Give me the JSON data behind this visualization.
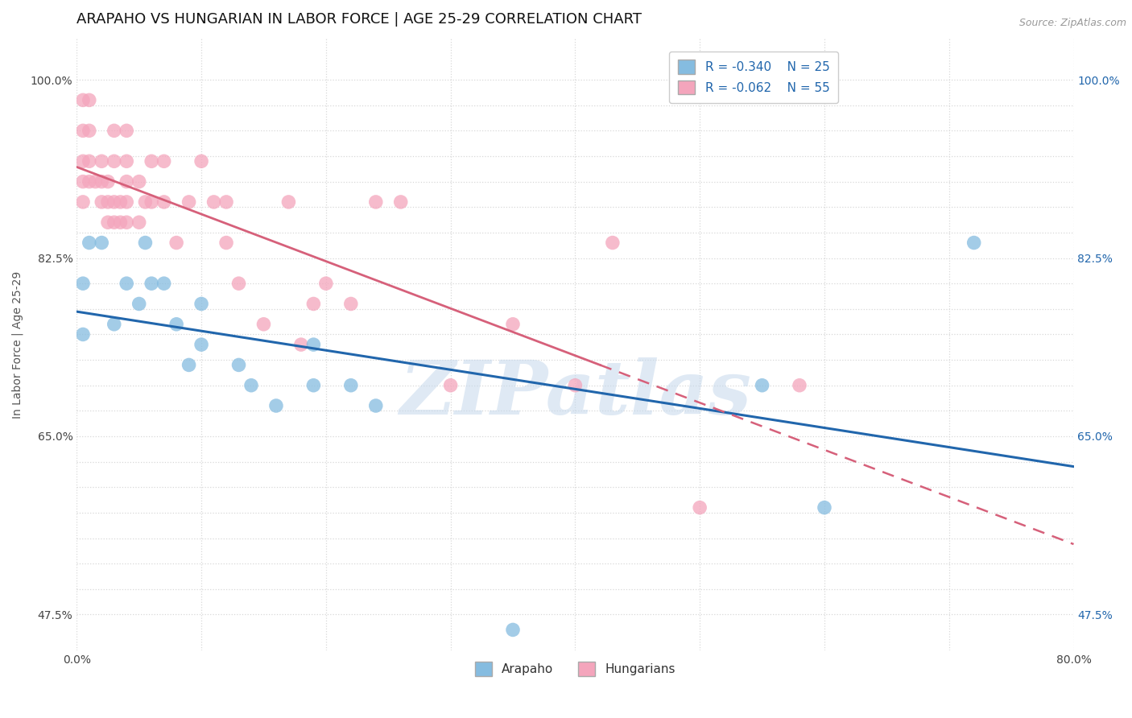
{
  "title": "ARAPAHO VS HUNGARIAN IN LABOR FORCE | AGE 25-29 CORRELATION CHART",
  "source_text": "Source: ZipAtlas.com",
  "xlabel": "",
  "ylabel": "In Labor Force | Age 25-29",
  "xlim": [
    0.0,
    0.8
  ],
  "ylim": [
    0.44,
    1.04
  ],
  "xticks": [
    0.0,
    0.1,
    0.2,
    0.3,
    0.4,
    0.5,
    0.6,
    0.7,
    0.8
  ],
  "xticklabels": [
    "0.0%",
    "",
    "",
    "",
    "",
    "",
    "",
    "",
    "80.0%"
  ],
  "ytick_labeled": [
    0.475,
    0.65,
    0.825,
    1.0
  ],
  "yticklabels_map": {
    "0.475": "47.5%",
    "0.65": "65.0%",
    "0.825": "82.5%",
    "1.0": "100.0%"
  },
  "arapaho_color": "#85bce0",
  "hungarian_color": "#f4a5bc",
  "arapaho_line_color": "#2166ac",
  "hungarian_line_color": "#d6607a",
  "legend_R_arapaho": "R = -0.340",
  "legend_N_arapaho": "N = 25",
  "legend_R_hungarian": "R = -0.062",
  "legend_N_hungarian": "N = 55",
  "legend_label_arapaho": "Arapaho",
  "legend_label_hungarian": "Hungarians",
  "arapaho_x": [
    0.005,
    0.005,
    0.01,
    0.02,
    0.03,
    0.04,
    0.05,
    0.055,
    0.06,
    0.07,
    0.08,
    0.09,
    0.1,
    0.1,
    0.13,
    0.14,
    0.16,
    0.19,
    0.19,
    0.22,
    0.24,
    0.35,
    0.55,
    0.6,
    0.72
  ],
  "arapaho_y": [
    0.75,
    0.8,
    0.84,
    0.84,
    0.76,
    0.8,
    0.78,
    0.84,
    0.8,
    0.8,
    0.76,
    0.72,
    0.78,
    0.74,
    0.72,
    0.7,
    0.68,
    0.74,
    0.7,
    0.7,
    0.68,
    0.46,
    0.7,
    0.58,
    0.84
  ],
  "hungarian_x": [
    0.005,
    0.005,
    0.005,
    0.005,
    0.005,
    0.01,
    0.01,
    0.01,
    0.01,
    0.015,
    0.02,
    0.02,
    0.02,
    0.025,
    0.025,
    0.025,
    0.03,
    0.03,
    0.03,
    0.03,
    0.035,
    0.035,
    0.04,
    0.04,
    0.04,
    0.04,
    0.04,
    0.05,
    0.05,
    0.055,
    0.06,
    0.06,
    0.07,
    0.07,
    0.08,
    0.09,
    0.1,
    0.11,
    0.12,
    0.12,
    0.13,
    0.15,
    0.17,
    0.18,
    0.19,
    0.2,
    0.22,
    0.24,
    0.26,
    0.3,
    0.35,
    0.4,
    0.43,
    0.5,
    0.58
  ],
  "hungarian_y": [
    0.88,
    0.9,
    0.92,
    0.95,
    0.98,
    0.9,
    0.92,
    0.95,
    0.98,
    0.9,
    0.88,
    0.9,
    0.92,
    0.86,
    0.88,
    0.9,
    0.86,
    0.88,
    0.92,
    0.95,
    0.86,
    0.88,
    0.86,
    0.88,
    0.9,
    0.92,
    0.95,
    0.86,
    0.9,
    0.88,
    0.88,
    0.92,
    0.88,
    0.92,
    0.84,
    0.88,
    0.92,
    0.88,
    0.84,
    0.88,
    0.8,
    0.76,
    0.88,
    0.74,
    0.78,
    0.8,
    0.78,
    0.88,
    0.88,
    0.7,
    0.76,
    0.7,
    0.84,
    0.58,
    0.7
  ],
  "watermark_text": "ZIPatlas",
  "watermark_color": "#c5d8ec",
  "background_color": "#ffffff",
  "grid_color": "#d8d8d8",
  "title_fontsize": 13,
  "axis_fontsize": 10,
  "tick_fontsize": 10,
  "hungarian_line_solid_end": 0.42,
  "hungarian_line_dashed_start": 0.42
}
